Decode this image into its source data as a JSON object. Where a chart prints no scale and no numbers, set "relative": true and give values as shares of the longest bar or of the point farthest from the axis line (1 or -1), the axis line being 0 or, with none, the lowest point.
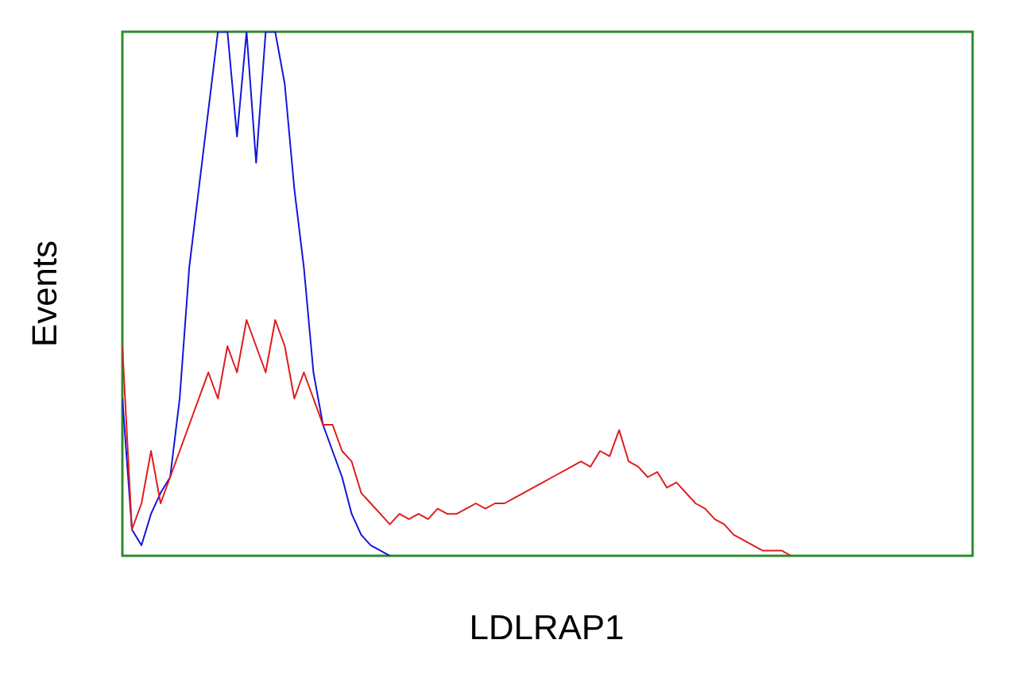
{
  "chart_data": {
    "type": "line",
    "relative": true,
    "xlabel": "LDLRAP1",
    "ylabel": "Events",
    "categories": [
      null,
      null,
      null,
      null,
      null,
      null,
      null,
      null,
      null,
      null,
      null,
      null,
      null,
      null,
      null,
      null,
      null,
      null,
      null,
      null,
      null,
      null,
      null,
      null,
      null,
      null,
      null,
      null,
      null,
      null,
      null,
      null,
      null,
      null,
      null,
      null,
      null,
      null,
      null,
      null,
      null,
      null,
      null,
      null,
      null,
      null,
      null,
      null,
      null,
      null,
      null,
      null,
      null,
      null,
      null,
      null,
      null,
      null,
      null,
      null,
      null,
      null,
      null,
      null,
      null,
      null,
      null,
      null,
      null,
      null,
      null,
      null,
      null,
      null,
      null,
      null,
      null,
      null,
      null,
      null,
      null,
      null,
      null,
      null,
      null,
      null,
      null,
      null,
      null,
      null
    ],
    "series": [
      {
        "color": "#1414d8",
        "values": [
          0.3,
          0.05,
          0.02,
          0.08,
          0.12,
          0.15,
          0.3,
          0.55,
          0.7,
          0.85,
          1.0,
          1.0,
          0.8,
          1.0,
          0.75,
          1.0,
          1.0,
          0.9,
          0.7,
          0.55,
          0.35,
          0.25,
          0.2,
          0.15,
          0.08,
          0.04,
          0.02,
          0.01,
          0,
          null,
          null,
          null,
          null,
          null,
          null,
          null,
          null,
          null,
          null,
          null,
          null,
          null,
          null,
          null,
          null,
          null,
          null,
          null,
          null,
          null,
          null,
          null,
          null,
          null,
          null,
          null,
          null,
          null,
          null,
          null,
          null,
          null,
          null,
          null,
          null,
          null,
          null,
          null,
          null,
          null,
          null,
          null,
          null,
          null,
          null,
          null,
          null,
          null,
          null,
          null,
          null,
          null,
          null,
          null,
          null,
          null,
          null,
          null,
          null,
          null
        ]
      },
      {
        "color": "#e01c1c",
        "values": [
          0.4,
          0.05,
          0.1,
          0.2,
          0.1,
          0.15,
          0.2,
          0.25,
          0.3,
          0.35,
          0.3,
          0.4,
          0.35,
          0.45,
          0.4,
          0.35,
          0.45,
          0.4,
          0.3,
          0.35,
          0.3,
          0.25,
          0.25,
          0.2,
          0.18,
          0.12,
          0.1,
          0.08,
          0.06,
          0.08,
          0.07,
          0.08,
          0.07,
          0.09,
          0.08,
          0.08,
          0.09,
          0.1,
          0.09,
          0.1,
          0.1,
          0.11,
          0.12,
          0.13,
          0.14,
          0.15,
          0.16,
          0.17,
          0.18,
          0.17,
          0.2,
          0.19,
          0.24,
          0.18,
          0.17,
          0.15,
          0.16,
          0.13,
          0.14,
          0.12,
          0.1,
          0.09,
          0.07,
          0.06,
          0.04,
          0.03,
          0.02,
          0.01,
          0.01,
          0.01,
          0,
          null,
          null,
          null,
          null,
          null,
          null,
          null,
          null,
          null,
          null,
          null,
          null,
          null,
          null,
          null,
          null,
          null,
          null,
          null
        ]
      }
    ]
  }
}
